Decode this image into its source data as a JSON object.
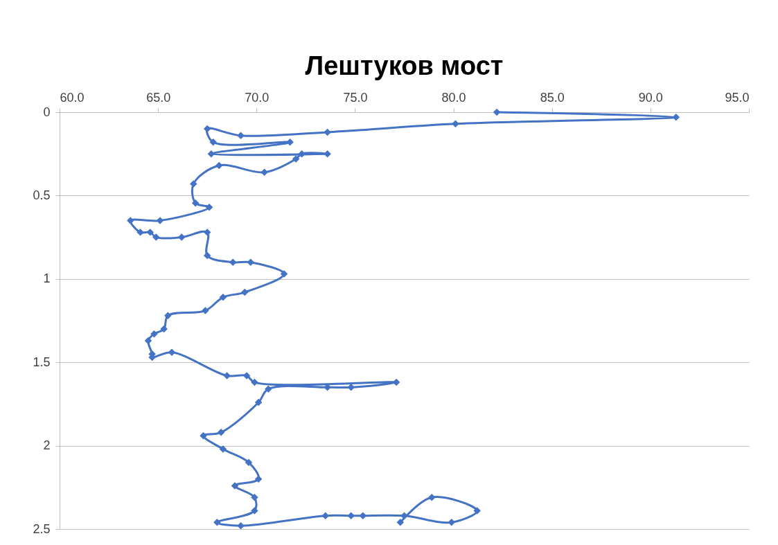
{
  "chart_data": {
    "type": "line",
    "title": "Лештуков мост",
    "x": [
      82.2,
      91.3,
      80.1,
      73.6,
      69.2,
      67.5,
      67.8,
      71.7,
      67.7,
      73.6,
      72.3,
      72.0,
      70.4,
      68.1,
      66.8,
      66.9,
      67.6,
      65.1,
      63.6,
      64.1,
      64.6,
      64.9,
      66.2,
      67.5,
      67.5,
      68.8,
      69.7,
      71.4,
      69.4,
      68.3,
      67.4,
      65.5,
      65.3,
      64.8,
      64.5,
      64.7,
      64.7,
      65.7,
      68.5,
      69.5,
      69.9,
      77.1,
      74.8,
      73.6,
      70.6,
      70.1,
      68.2,
      67.3,
      68.3,
      69.6,
      70.1,
      68.9,
      69.9,
      69.9,
      68.0,
      69.2,
      73.5,
      74.8,
      75.4,
      77.5,
      79.9,
      81.2,
      78.9,
      77.3
    ],
    "values": [
      0,
      0.03,
      0.07,
      0.12,
      0.14,
      0.1,
      0.18,
      0.18,
      0.25,
      0.25,
      0.25,
      0.28,
      0.36,
      0.32,
      0.43,
      0.545,
      0.57,
      0.65,
      0.65,
      0.72,
      0.72,
      0.75,
      0.75,
      0.72,
      0.86,
      0.9,
      0.9,
      0.97,
      1.08,
      1.11,
      1.19,
      1.22,
      1.3,
      1.33,
      1.37,
      1.45,
      1.47,
      1.44,
      1.58,
      1.58,
      1.62,
      1.62,
      1.65,
      1.65,
      1.66,
      1.74,
      1.92,
      1.94,
      2.02,
      2.1,
      2.2,
      2.24,
      2.31,
      2.39,
      2.46,
      2.48,
      2.42,
      2.42,
      2.42,
      2.42,
      2.46,
      2.39,
      2.31,
      2.46
    ],
    "color": "#4472c4",
    "marker": "diamond",
    "line_style": "solid",
    "xlim": [
      60,
      95
    ],
    "xticks": [
      {
        "value": 60,
        "label": "60.0"
      },
      {
        "value": 65,
        "label": "65.0"
      },
      {
        "value": 70,
        "label": "70.0"
      },
      {
        "value": 75,
        "label": "75.0"
      },
      {
        "value": 80,
        "label": "80.0"
      },
      {
        "value": 85,
        "label": "85.0"
      },
      {
        "value": 90,
        "label": "90.0"
      },
      {
        "value": 95,
        "label": "95.0"
      }
    ],
    "ylim": [
      2.5,
      0
    ],
    "yticks": [
      0,
      0.5,
      1,
      1.5,
      2,
      2.5
    ],
    "grid": "y"
  }
}
